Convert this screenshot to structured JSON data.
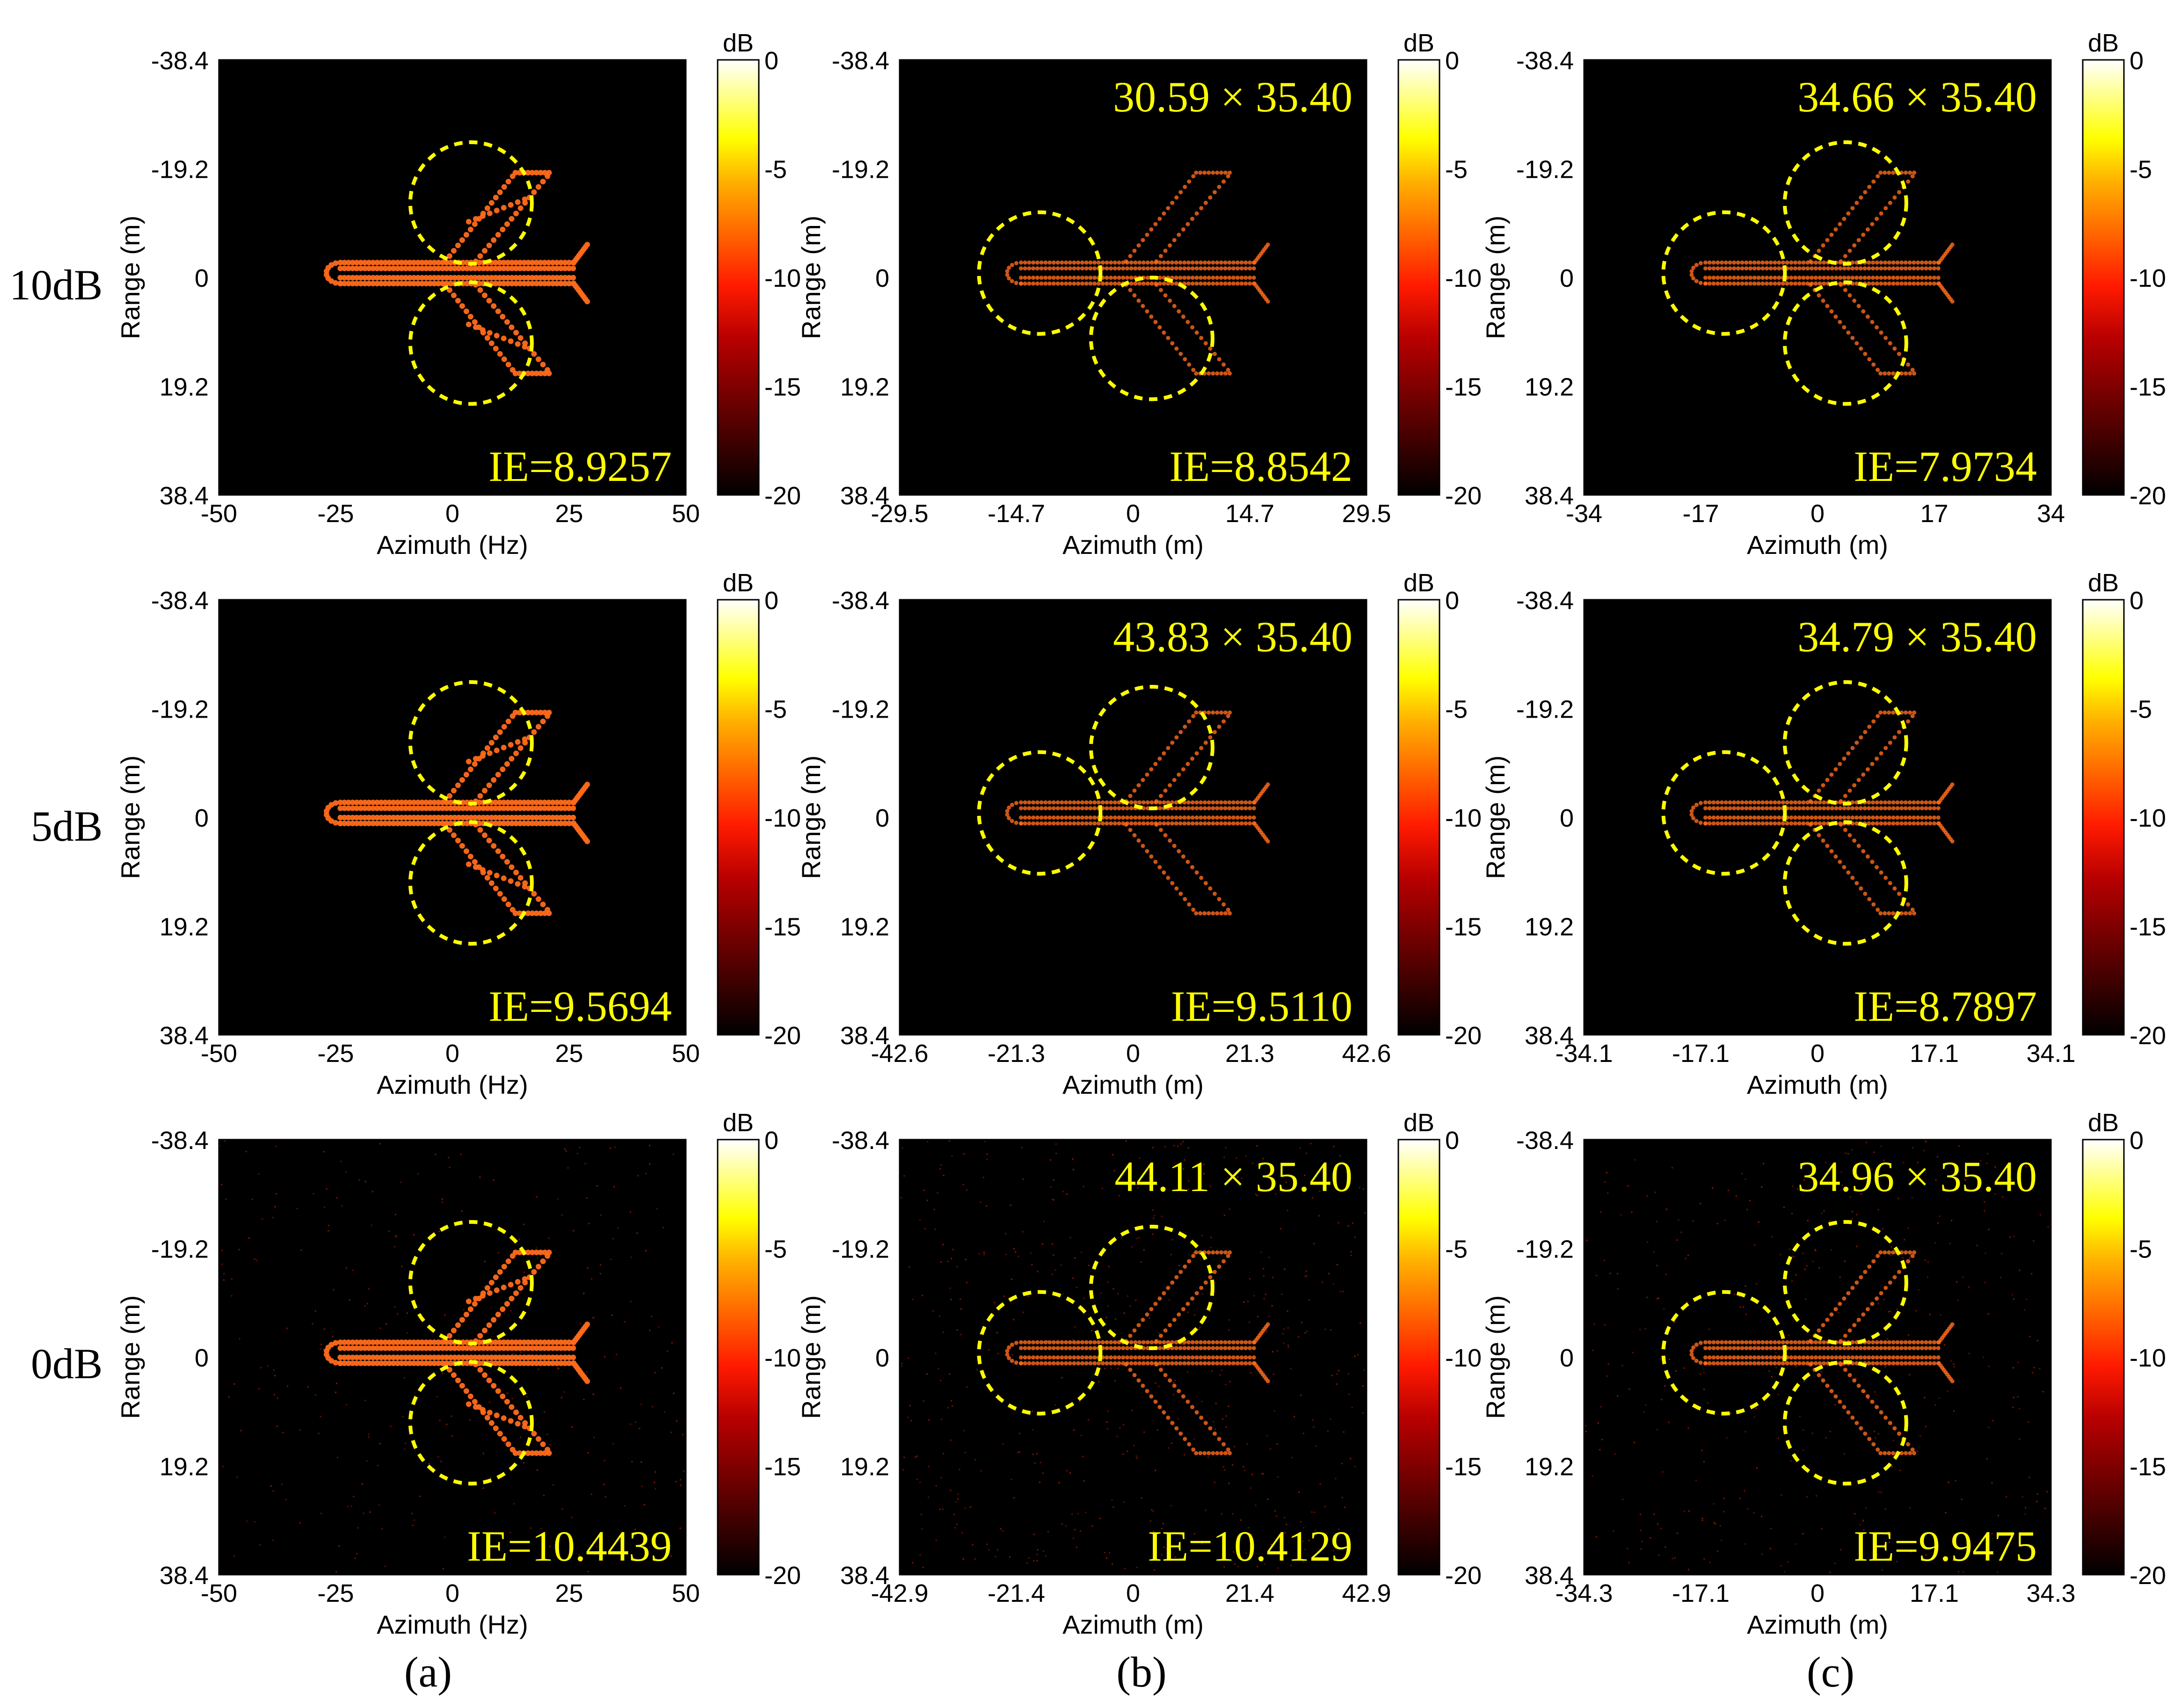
{
  "colorbar": {
    "unit": "dB",
    "ticks": [
      "0",
      "-5",
      "-10",
      "-15",
      "-20"
    ],
    "range": [
      -20,
      0
    ],
    "colormap": "hot"
  },
  "colors": {
    "annotation": "#ffff00",
    "circle": "#ffff00",
    "background": "#000000",
    "target": "#ff6a1a"
  },
  "row_labels": [
    "10dB",
    "5dB",
    "0dB"
  ],
  "column_labels": [
    "(a)",
    "(b)",
    "(c)"
  ],
  "chart_data": [
    {
      "type": "heatmap",
      "row": 0,
      "col": 0,
      "xlabel": "Azimuth (Hz)",
      "ylabel": "Range (m)",
      "xticks": [
        "-50",
        "-25",
        "0",
        "25",
        "50"
      ],
      "yticks": [
        "-38.4",
        "-19.2",
        "0",
        "19.2",
        "38.4"
      ],
      "xlim": [
        -50,
        50
      ],
      "ylim": [
        -38.4,
        38.4
      ],
      "size_label": "",
      "ie_label": "IE=8.9257",
      "noise": 0.0,
      "circles": "wings"
    },
    {
      "type": "heatmap",
      "row": 0,
      "col": 1,
      "xlabel": "Azimuth (m)",
      "ylabel": "Range (m)",
      "xticks": [
        "-29.5",
        "-14.7",
        "0",
        "14.7",
        "29.5"
      ],
      "yticks": [
        "-38.4",
        "-19.2",
        "0",
        "19.2",
        "38.4"
      ],
      "xlim": [
        -29.5,
        29.5
      ],
      "ylim": [
        -38.4,
        38.4
      ],
      "size_label": "30.59 × 35.40",
      "ie_label": "IE=8.8542",
      "noise": 0.0,
      "circles": "nose-lower"
    },
    {
      "type": "heatmap",
      "row": 0,
      "col": 2,
      "xlabel": "Azimuth (m)",
      "ylabel": "Range (m)",
      "xticks": [
        "-34",
        "-17",
        "0",
        "17",
        "34"
      ],
      "yticks": [
        "-38.4",
        "-19.2",
        "0",
        "19.2",
        "38.4"
      ],
      "xlim": [
        -34,
        34
      ],
      "ylim": [
        -38.4,
        38.4
      ],
      "size_label": "34.66 × 35.40",
      "ie_label": "IE=7.9734",
      "noise": 0.0,
      "circles": "three"
    },
    {
      "type": "heatmap",
      "row": 1,
      "col": 0,
      "xlabel": "Azimuth (Hz)",
      "ylabel": "Range (m)",
      "xticks": [
        "-50",
        "-25",
        "0",
        "25",
        "50"
      ],
      "yticks": [
        "-38.4",
        "-19.2",
        "0",
        "19.2",
        "38.4"
      ],
      "xlim": [
        -50,
        50
      ],
      "ylim": [
        -38.4,
        38.4
      ],
      "size_label": "",
      "ie_label": "IE=9.5694",
      "noise": 0.0,
      "circles": "wings"
    },
    {
      "type": "heatmap",
      "row": 1,
      "col": 1,
      "xlabel": "Azimuth (m)",
      "ylabel": "Range (m)",
      "xticks": [
        "-42.6",
        "-21.3",
        "0",
        "21.3",
        "42.6"
      ],
      "yticks": [
        "-38.4",
        "-19.2",
        "0",
        "19.2",
        "38.4"
      ],
      "xlim": [
        -42.6,
        42.6
      ],
      "ylim": [
        -38.4,
        38.4
      ],
      "size_label": "43.83 × 35.40",
      "ie_label": "IE=9.5110",
      "noise": 0.0,
      "circles": "nose-upper"
    },
    {
      "type": "heatmap",
      "row": 1,
      "col": 2,
      "xlabel": "Azimuth (m)",
      "ylabel": "Range (m)",
      "xticks": [
        "-34.1",
        "-17.1",
        "0",
        "17.1",
        "34.1"
      ],
      "yticks": [
        "-38.4",
        "-19.2",
        "0",
        "19.2",
        "38.4"
      ],
      "xlim": [
        -34.1,
        34.1
      ],
      "ylim": [
        -38.4,
        38.4
      ],
      "size_label": "34.79 × 35.40",
      "ie_label": "IE=8.7897",
      "noise": 0.0,
      "circles": "three"
    },
    {
      "type": "heatmap",
      "row": 2,
      "col": 0,
      "xlabel": "Azimuth (Hz)",
      "ylabel": "Range (m)",
      "xticks": [
        "-50",
        "-25",
        "0",
        "25",
        "50"
      ],
      "yticks": [
        "-38.4",
        "-19.2",
        "0",
        "19.2",
        "38.4"
      ],
      "xlim": [
        -50,
        50
      ],
      "ylim": [
        -38.4,
        38.4
      ],
      "size_label": "",
      "ie_label": "IE=10.4439",
      "noise": 0.35,
      "circles": "wings"
    },
    {
      "type": "heatmap",
      "row": 2,
      "col": 1,
      "xlabel": "Azimuth (m)",
      "ylabel": "Range (m)",
      "xticks": [
        "-42.9",
        "-21.4",
        "0",
        "21.4",
        "42.9"
      ],
      "yticks": [
        "-38.4",
        "-19.2",
        "0",
        "19.2",
        "38.4"
      ],
      "xlim": [
        -42.9,
        42.9
      ],
      "ylim": [
        -38.4,
        38.4
      ],
      "size_label": "44.11 × 35.40",
      "ie_label": "IE=10.4129",
      "noise": 0.6,
      "circles": "nose-upper"
    },
    {
      "type": "heatmap",
      "row": 2,
      "col": 2,
      "xlabel": "Azimuth (m)",
      "ylabel": "Range (m)",
      "xticks": [
        "-34.3",
        "-17.1",
        "0",
        "17.1",
        "34.3"
      ],
      "yticks": [
        "-38.4",
        "-19.2",
        "0",
        "19.2",
        "38.4"
      ],
      "xlim": [
        -34.3,
        34.3
      ],
      "ylim": [
        -38.4,
        38.4
      ],
      "size_label": "34.96 × 35.40",
      "ie_label": "IE=9.9475",
      "noise": 0.45,
      "circles": "three"
    }
  ]
}
